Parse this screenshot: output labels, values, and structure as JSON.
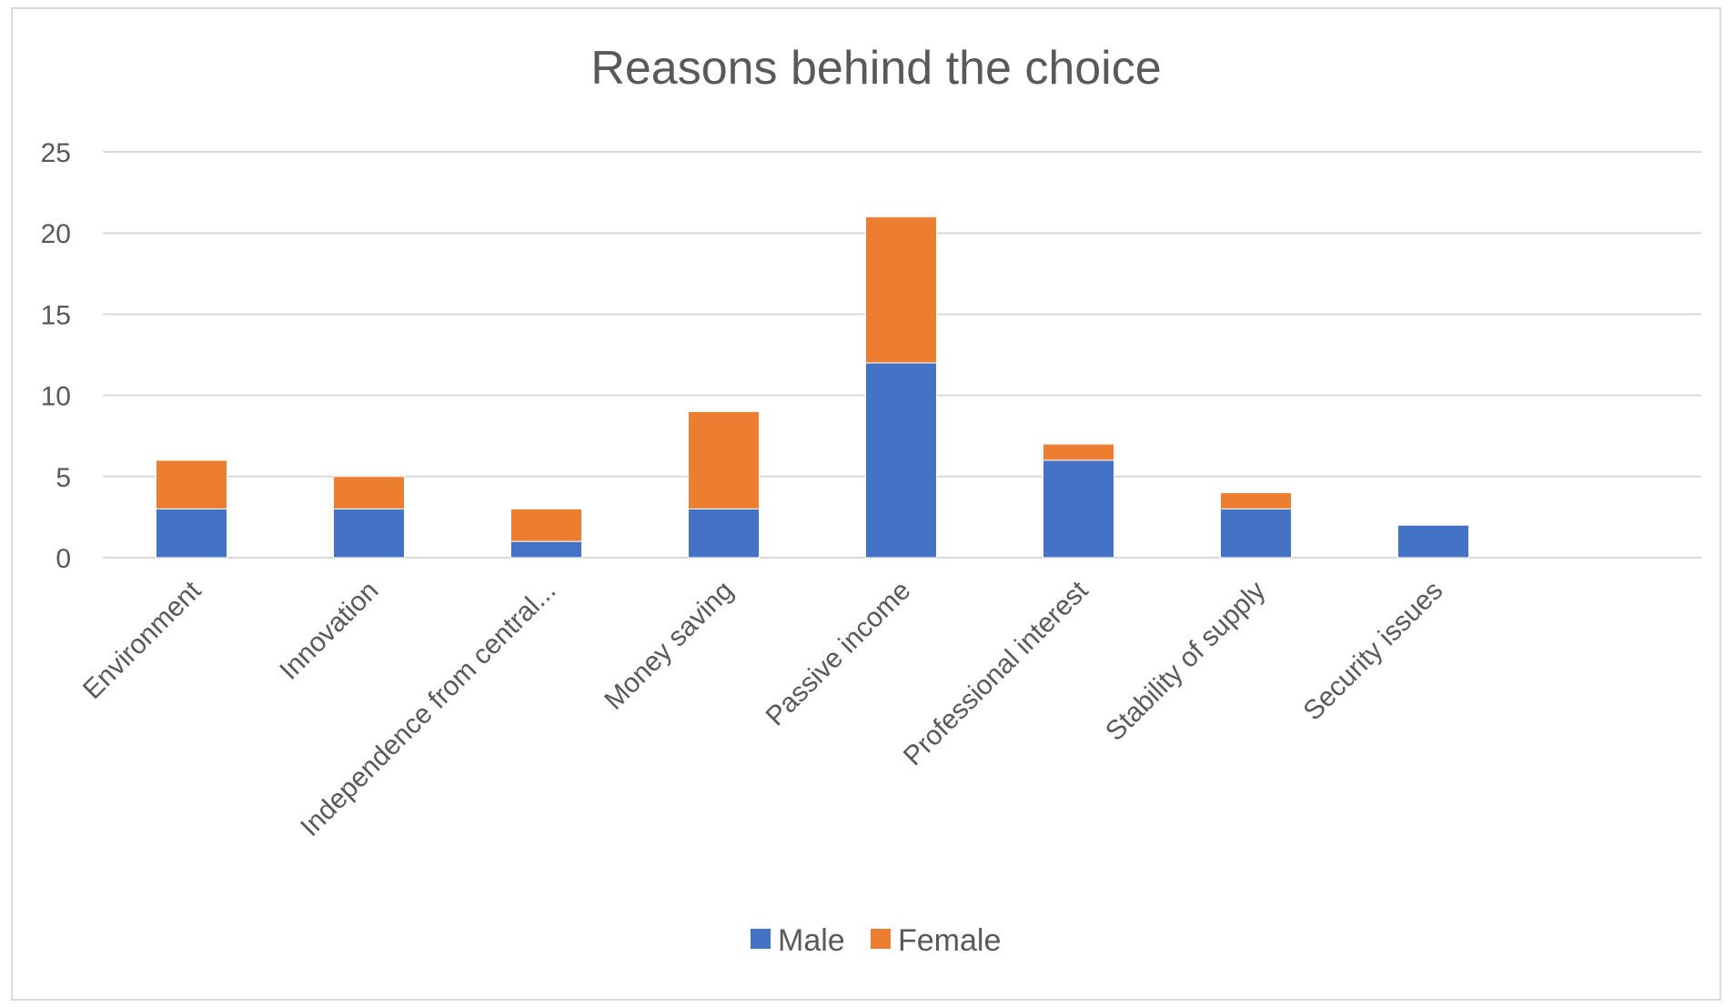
{
  "chart_data": {
    "type": "bar",
    "stacked": true,
    "title": "Reasons behind the choice",
    "xlabel": "",
    "ylabel": "",
    "ylim": [
      0,
      25
    ],
    "yticks": [
      0,
      5,
      10,
      15,
      20,
      25
    ],
    "grid": true,
    "legend": "bottom",
    "categories": [
      "Environment",
      "Innovation",
      "Independence from central...",
      "Money saving",
      "Passive income",
      "Professional interest",
      "Stability of supply",
      "Security issues"
    ],
    "series": [
      {
        "name": "Male",
        "color": "#4472c4",
        "values": [
          3,
          3,
          1,
          3,
          12,
          6,
          3,
          2
        ]
      },
      {
        "name": "Female",
        "color": "#ed7d31",
        "values": [
          3,
          2,
          2,
          6,
          9,
          1,
          1,
          0
        ]
      }
    ]
  }
}
